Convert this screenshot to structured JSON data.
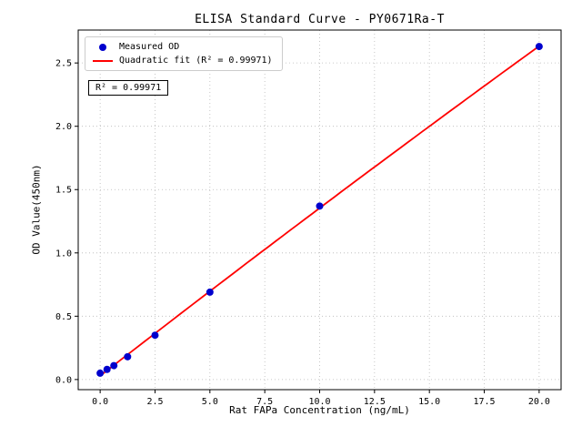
{
  "figure": {
    "background": "#ffffff",
    "frame_color": "#000000",
    "grid_color": "#b8b8b8"
  },
  "chart_data": {
    "type": "scatter",
    "title": "ELISA Standard Curve - PY0671Ra-T",
    "xlabel": "Rat FAPa Concentration (ng/mL)",
    "ylabel": "OD Value(450nm)",
    "xlim": [
      -1,
      21
    ],
    "ylim": [
      -0.08,
      2.76
    ],
    "xticks": [
      0,
      2.5,
      5,
      7.5,
      10,
      12.5,
      15,
      17.5,
      20
    ],
    "yticks": [
      0,
      0.5,
      1,
      1.5,
      2,
      2.5
    ],
    "grid": true,
    "legend_position": "upper-left",
    "series": [
      {
        "name": "Measured OD",
        "type": "scatter",
        "color": "#0000cd",
        "x": [
          0,
          0.313,
          0.625,
          1.25,
          2.5,
          5,
          10,
          20
        ],
        "y": [
          0.05,
          0.08,
          0.11,
          0.18,
          0.35,
          0.69,
          1.37,
          2.63
        ]
      },
      {
        "name": "Quadratic fit (R² = 0.99971)",
        "type": "line",
        "color": "#ff0000",
        "fit": "quadratic"
      }
    ],
    "annotation": "R² = 0.99971",
    "r_squared": 0.99971
  }
}
